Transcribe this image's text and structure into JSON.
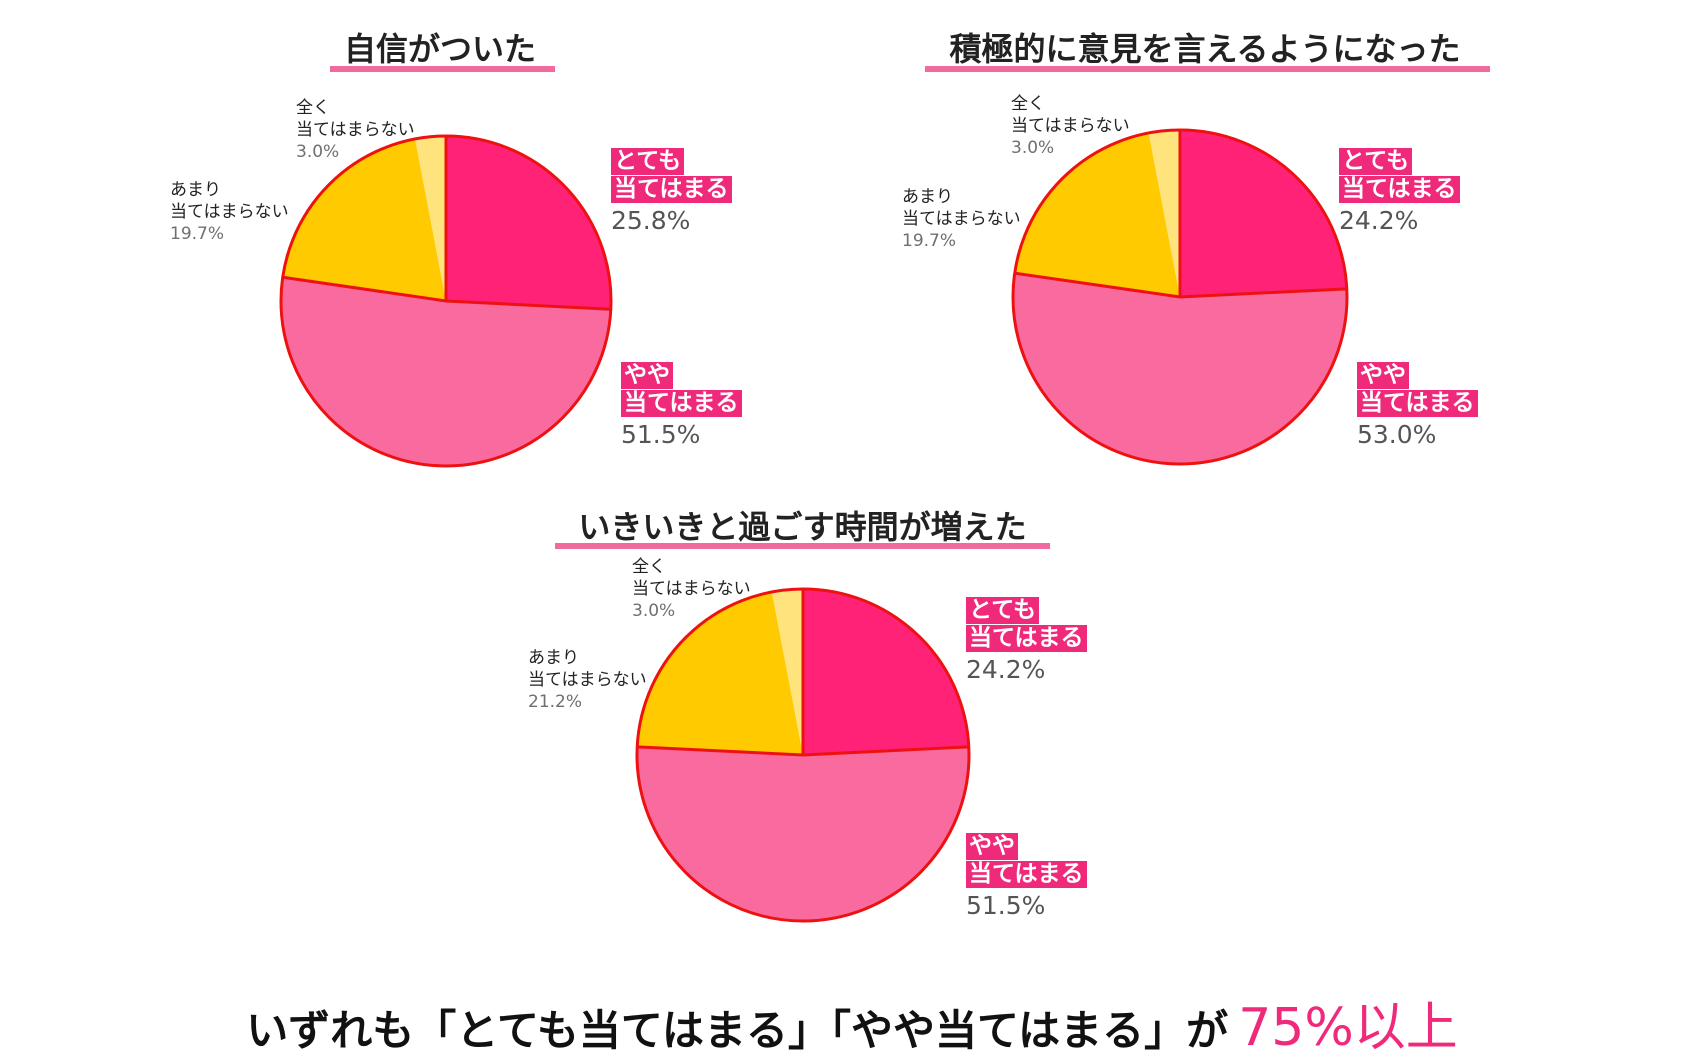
{
  "colors": {
    "strong_agree": "#ff2277",
    "somewhat_agree": "#f96b9f",
    "somewhat_disagree": "#ffca00",
    "strongly_disagree": "#ffe37d",
    "outline": "#ee1111",
    "badge_bg": "#ef2a7a",
    "accent": "#ef2a7a"
  },
  "chart_data": [
    {
      "type": "pie",
      "title": "自信がついた",
      "slices": [
        {
          "key": "strong",
          "label_lines": [
            "とても",
            "当てはまる"
          ],
          "value": 25.8,
          "display": "25.8%"
        },
        {
          "key": "some",
          "label_lines": [
            "やや",
            "当てはまる"
          ],
          "value": 51.5,
          "display": "51.5%"
        },
        {
          "key": "not_much",
          "label_lines": [
            "あまり",
            "当てはまらない"
          ],
          "value": 19.7,
          "display": "19.7%"
        },
        {
          "key": "not_at_all",
          "label_lines": [
            "全く",
            "当てはまらない"
          ],
          "value": 3.0,
          "display": "3.0%"
        }
      ]
    },
    {
      "type": "pie",
      "title": "積極的に意見を言えるようになった",
      "slices": [
        {
          "key": "strong",
          "label_lines": [
            "とても",
            "当てはまる"
          ],
          "value": 24.2,
          "display": "24.2%"
        },
        {
          "key": "some",
          "label_lines": [
            "やや",
            "当てはまる"
          ],
          "value": 53.0,
          "display": "53.0%"
        },
        {
          "key": "not_much",
          "label_lines": [
            "あまり",
            "当てはまらない"
          ],
          "value": 19.7,
          "display": "19.7%"
        },
        {
          "key": "not_at_all",
          "label_lines": [
            "全く",
            "当てはまらない"
          ],
          "value": 3.0,
          "display": "3.0%"
        }
      ]
    },
    {
      "type": "pie",
      "title": "いきいきと過ごす時間が増えた",
      "slices": [
        {
          "key": "strong",
          "label_lines": [
            "とても",
            "当てはまる"
          ],
          "value": 24.2,
          "display": "24.2%"
        },
        {
          "key": "some",
          "label_lines": [
            "やや",
            "当てはまる"
          ],
          "value": 51.5,
          "display": "51.5%"
        },
        {
          "key": "not_much",
          "label_lines": [
            "あまり",
            "当てはまらない"
          ],
          "value": 21.2,
          "display": "21.2%"
        },
        {
          "key": "not_at_all",
          "label_lines": [
            "全く",
            "当てはまらない"
          ],
          "value": 3.0,
          "display": "3.0%"
        }
      ]
    }
  ],
  "summary": {
    "text": "いずれも「とても当てはまる」「やや当てはまる」が",
    "highlight": "75%以上"
  }
}
